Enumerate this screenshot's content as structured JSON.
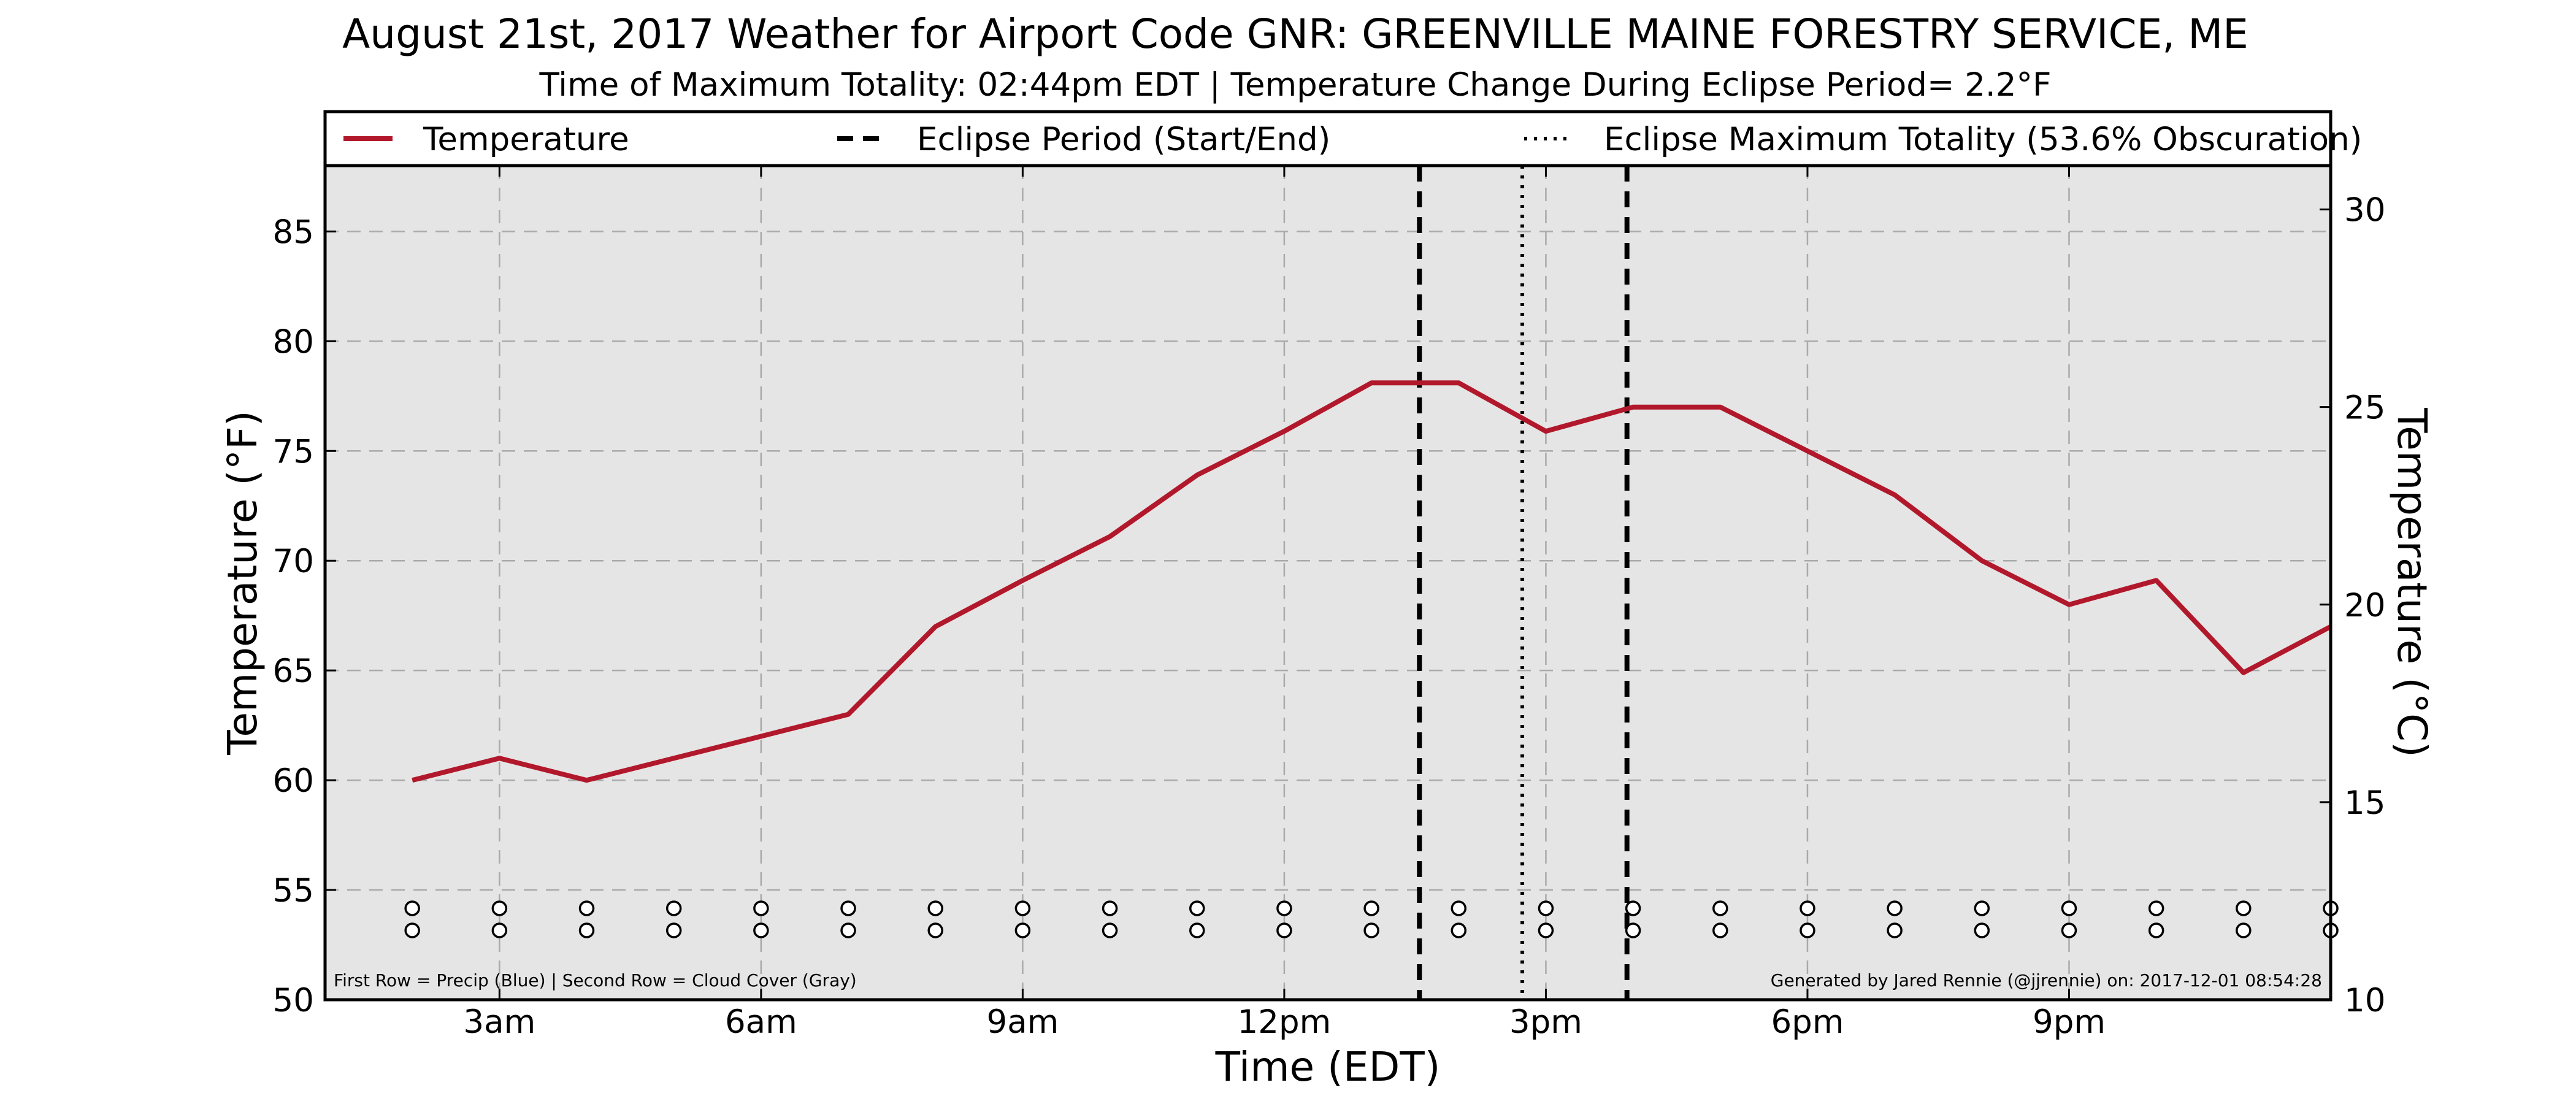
{
  "chart_data": {
    "type": "line",
    "title": "August 21st, 2017 Weather for Airport Code GNR: GREENVILLE MAINE FORESTRY SERVICE, ME",
    "subtitle": "Time of Maximum Totality: 02:44pm EDT | Temperature Change During Eclipse Period= 2.2°F",
    "xlabel": "Time (EDT)",
    "ylabel": "Temperature (°F)",
    "ylabel_right": "Temperature (°C)",
    "x_range_hours": [
      1,
      24
    ],
    "ylim": [
      50,
      88
    ],
    "ylim_right_c": [
      10,
      31.11
    ],
    "x_ticks": [
      {
        "hour": 3,
        "label": "3am"
      },
      {
        "hour": 6,
        "label": "6am"
      },
      {
        "hour": 9,
        "label": "9am"
      },
      {
        "hour": 12,
        "label": "12pm"
      },
      {
        "hour": 15,
        "label": "3pm"
      },
      {
        "hour": 18,
        "label": "6pm"
      },
      {
        "hour": 21,
        "label": "9pm"
      }
    ],
    "y_ticks_left": [
      "50",
      "55",
      "60",
      "65",
      "70",
      "75",
      "80",
      "85"
    ],
    "y_ticks_right": [
      "10",
      "15",
      "20",
      "25",
      "30"
    ],
    "grid": true,
    "legend_placement": "top",
    "legend": [
      {
        "label": "Temperature",
        "style": "solid"
      },
      {
        "label": "Eclipse Period (Start/End)",
        "style": "dashed"
      },
      {
        "label": "Eclipse Maximum Totality (53.6% Obscuration)",
        "style": "dotted"
      }
    ],
    "series": [
      {
        "name": "Temperature",
        "color": "#b2182b",
        "x_hours": [
          2,
          3,
          4,
          5,
          6,
          7,
          8,
          9,
          10,
          11,
          12,
          13,
          14,
          15,
          16,
          17,
          18,
          19,
          20,
          21,
          22,
          23,
          24
        ],
        "values": [
          60,
          61,
          60,
          61,
          62,
          63,
          67,
          69.1,
          71.1,
          73.9,
          75.9,
          78.1,
          78.1,
          75.9,
          77,
          77,
          75,
          73,
          70,
          68,
          69.1,
          64.9,
          67
        ]
      }
    ],
    "eclipse_start_hour": 13.55,
    "eclipse_end_hour": 15.93,
    "eclipse_max_hour": 14.73,
    "marker_rows": {
      "x_hours": [
        2,
        3,
        4,
        5,
        6,
        7,
        8,
        9,
        10,
        11,
        12,
        13,
        14,
        15,
        16,
        17,
        18,
        19,
        20,
        21,
        22,
        23,
        24
      ],
      "rows": [
        "Precip (Blue)",
        "Cloud Cover (Gray)"
      ]
    },
    "footnote_left": "First Row = Precip (Blue) | Second Row = Cloud Cover (Gray)",
    "footnote_right": "Generated by Jared Rennie (@jjrennie) on: 2017-12-01 08:54:28",
    "colors": {
      "temperature": "#b2182b",
      "plot_background": "#e5e5e5",
      "grid": "#aaaaaa"
    }
  }
}
